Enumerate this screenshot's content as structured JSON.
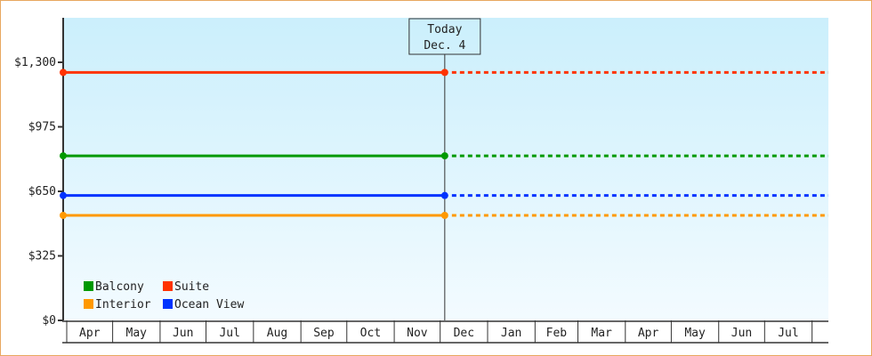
{
  "chart_data": {
    "type": "line",
    "title": "",
    "xlabel": "",
    "ylabel": "",
    "ylim": [
      0,
      1525
    ],
    "y_ticks": [
      0,
      325,
      650,
      975,
      1300
    ],
    "y_tick_labels": [
      "$0",
      "$325",
      "$650",
      "$975",
      "$1,300"
    ],
    "x_tick_labels": [
      "Apr",
      "May",
      "Jun",
      "Jul",
      "Aug",
      "Sep",
      "Oct",
      "Nov",
      "Dec",
      "Jan",
      "Feb",
      "Mar",
      "Apr",
      "May",
      "Jun",
      "Jul"
    ],
    "today": {
      "line1": "Today",
      "line2": "Dec. 4"
    },
    "series": [
      {
        "name": "Suite",
        "color": "#ff3300",
        "values": [
          1249,
          1249
        ],
        "projected": 1249
      },
      {
        "name": "Balcony",
        "color": "#009900",
        "values": [
          829,
          829
        ],
        "projected": 829
      },
      {
        "name": "Ocean View",
        "color": "#0033ff",
        "values": [
          629,
          629
        ],
        "projected": 629
      },
      {
        "name": "Interior",
        "color": "#ff9900",
        "values": [
          529,
          529
        ],
        "projected": 529
      }
    ],
    "legend": {
      "placement": "bottom-left",
      "order": [
        "Balcony",
        "Suite",
        "Interior",
        "Ocean View"
      ]
    },
    "grid": false,
    "line_style": {
      "history": "solid",
      "future": "dotted"
    }
  }
}
